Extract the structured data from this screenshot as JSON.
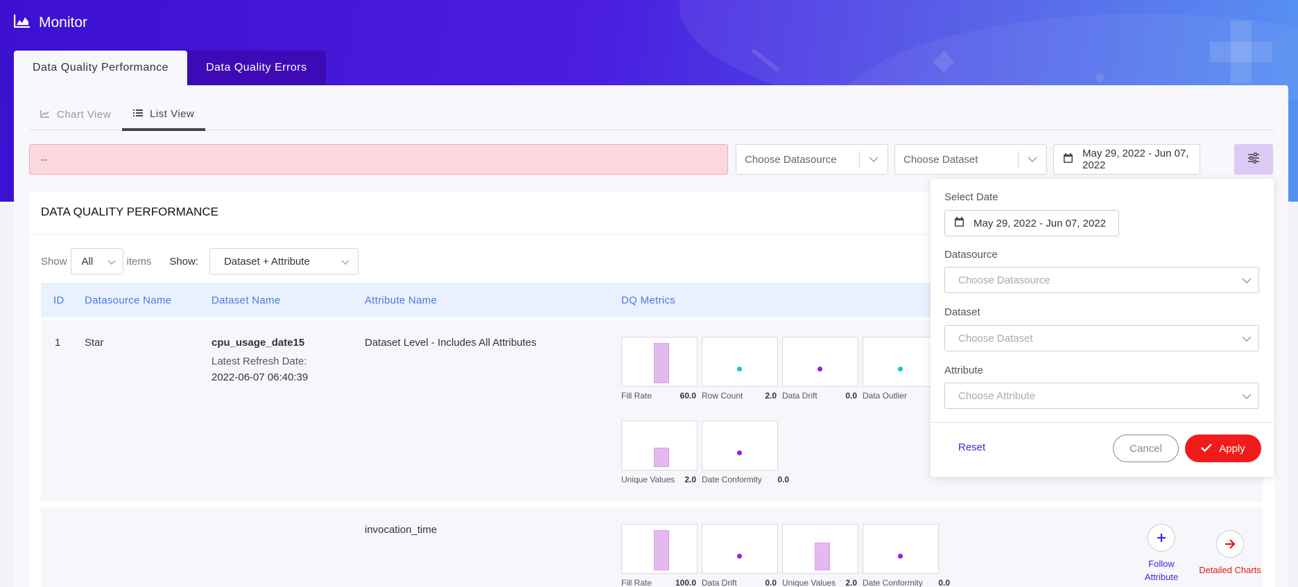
{
  "app": {
    "title": "Monitor"
  },
  "main_tabs": [
    {
      "label": "Data Quality Performance"
    },
    {
      "label": "Data Quality Errors"
    }
  ],
  "view_tabs": [
    {
      "label": "Chart View"
    },
    {
      "label": "List View"
    }
  ],
  "filters": {
    "error_text": "--",
    "datasource_placeholder": "Choose Datasource",
    "dataset_placeholder": "Choose Dataset",
    "date_range": "May 29, 2022 - Jun 07, 2022"
  },
  "panel": {
    "title": "DATA QUALITY PERFORMANCE",
    "show_label": "Show",
    "items_value": "All",
    "items_label": "items",
    "show2_label": "Show:",
    "show2_value": "Dataset + Attribute"
  },
  "table": {
    "headers": [
      "ID",
      "Datasource Name",
      "Dataset Name",
      "Attribute Name",
      "DQ Metrics"
    ],
    "rows": [
      {
        "id": "1",
        "datasource": "Star",
        "dataset": "cpu_usage_date15",
        "refresh_label": "Latest Refresh Date:",
        "refresh_date": "2022-06-07 06:40:39",
        "attribute": "Dataset Level - Includes All Attributes",
        "metrics": [
          {
            "label": "Fill Rate",
            "value": "60.0"
          },
          {
            "label": "Row Count",
            "value": "2.0"
          },
          {
            "label": "Data Drift",
            "value": "0.0"
          },
          {
            "label": "Data Outlier",
            "value": ""
          },
          {
            "label": "Unique Values",
            "value": "2.0"
          },
          {
            "label": "Date Conformity",
            "value": "0.0"
          }
        ]
      },
      {
        "attribute": "invocation_time",
        "metrics": [
          {
            "label": "Fill Rate",
            "value": "100.0"
          },
          {
            "label": "Data Drift",
            "value": "0.0"
          },
          {
            "label": "Unique Values",
            "value": "2.0"
          },
          {
            "label": "Date Conformity",
            "value": "0.0"
          }
        ],
        "follow_label_1": "Follow",
        "follow_label_2": "Attribute",
        "detailed_label": "Detailed Charts"
      }
    ]
  },
  "filter_popup": {
    "date_label": "Select Date",
    "date_value": "May 29, 2022 - Jun 07, 2022",
    "datasource_label": "Datasource",
    "datasource_placeholder": "Choose Datasource",
    "dataset_label": "Dataset",
    "dataset_placeholder": "Choose Dataset",
    "attribute_label": "Attribute",
    "attribute_placeholder": "Choose Attribute",
    "reset": "Reset",
    "cancel": "Cancel",
    "apply": "Apply"
  },
  "colors": {
    "accent": "#3d0fd0",
    "danger": "#f01c1c",
    "bar": "#e4b9f0",
    "dot_teal": "#17c9c3",
    "dot_purple": "#a415e8"
  },
  "icons": [
    "area-chart-icon",
    "line-chart-icon",
    "list-icon",
    "calendar-icon",
    "sliders-icon",
    "chevron-down-icon",
    "check-icon",
    "plus-icon",
    "arrow-right-icon"
  ]
}
